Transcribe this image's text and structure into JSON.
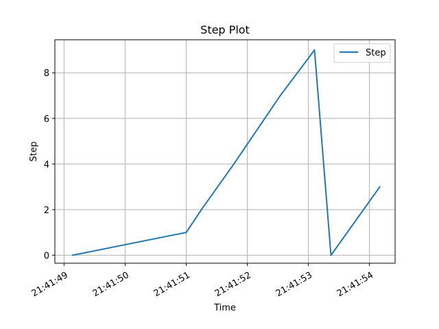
{
  "chart_data": {
    "type": "line",
    "title": "Step Plot",
    "xlabel": "Time",
    "ylabel": "Step",
    "grid": true,
    "legend_position": "upper-right",
    "xlim": [
      "21:41:48.850",
      "21:41:54.420"
    ],
    "ylim": [
      -0.35,
      9.45
    ],
    "x_ticks": [
      "21:41:49",
      "21:41:50",
      "21:41:51",
      "21:41:52",
      "21:41:53",
      "21:41:54"
    ],
    "y_ticks": [
      0,
      2,
      4,
      6,
      8
    ],
    "series": [
      {
        "name": "Step",
        "color": "#1f77b4",
        "x": [
          "21:41:49.140",
          "21:41:51.000",
          "21:41:51.250",
          "21:41:51.780",
          "21:41:52.540",
          "21:41:53.100",
          "21:41:53.370",
          "21:41:54.170"
        ],
        "y": [
          0,
          1,
          2,
          4,
          7,
          9,
          0,
          3
        ]
      }
    ]
  }
}
